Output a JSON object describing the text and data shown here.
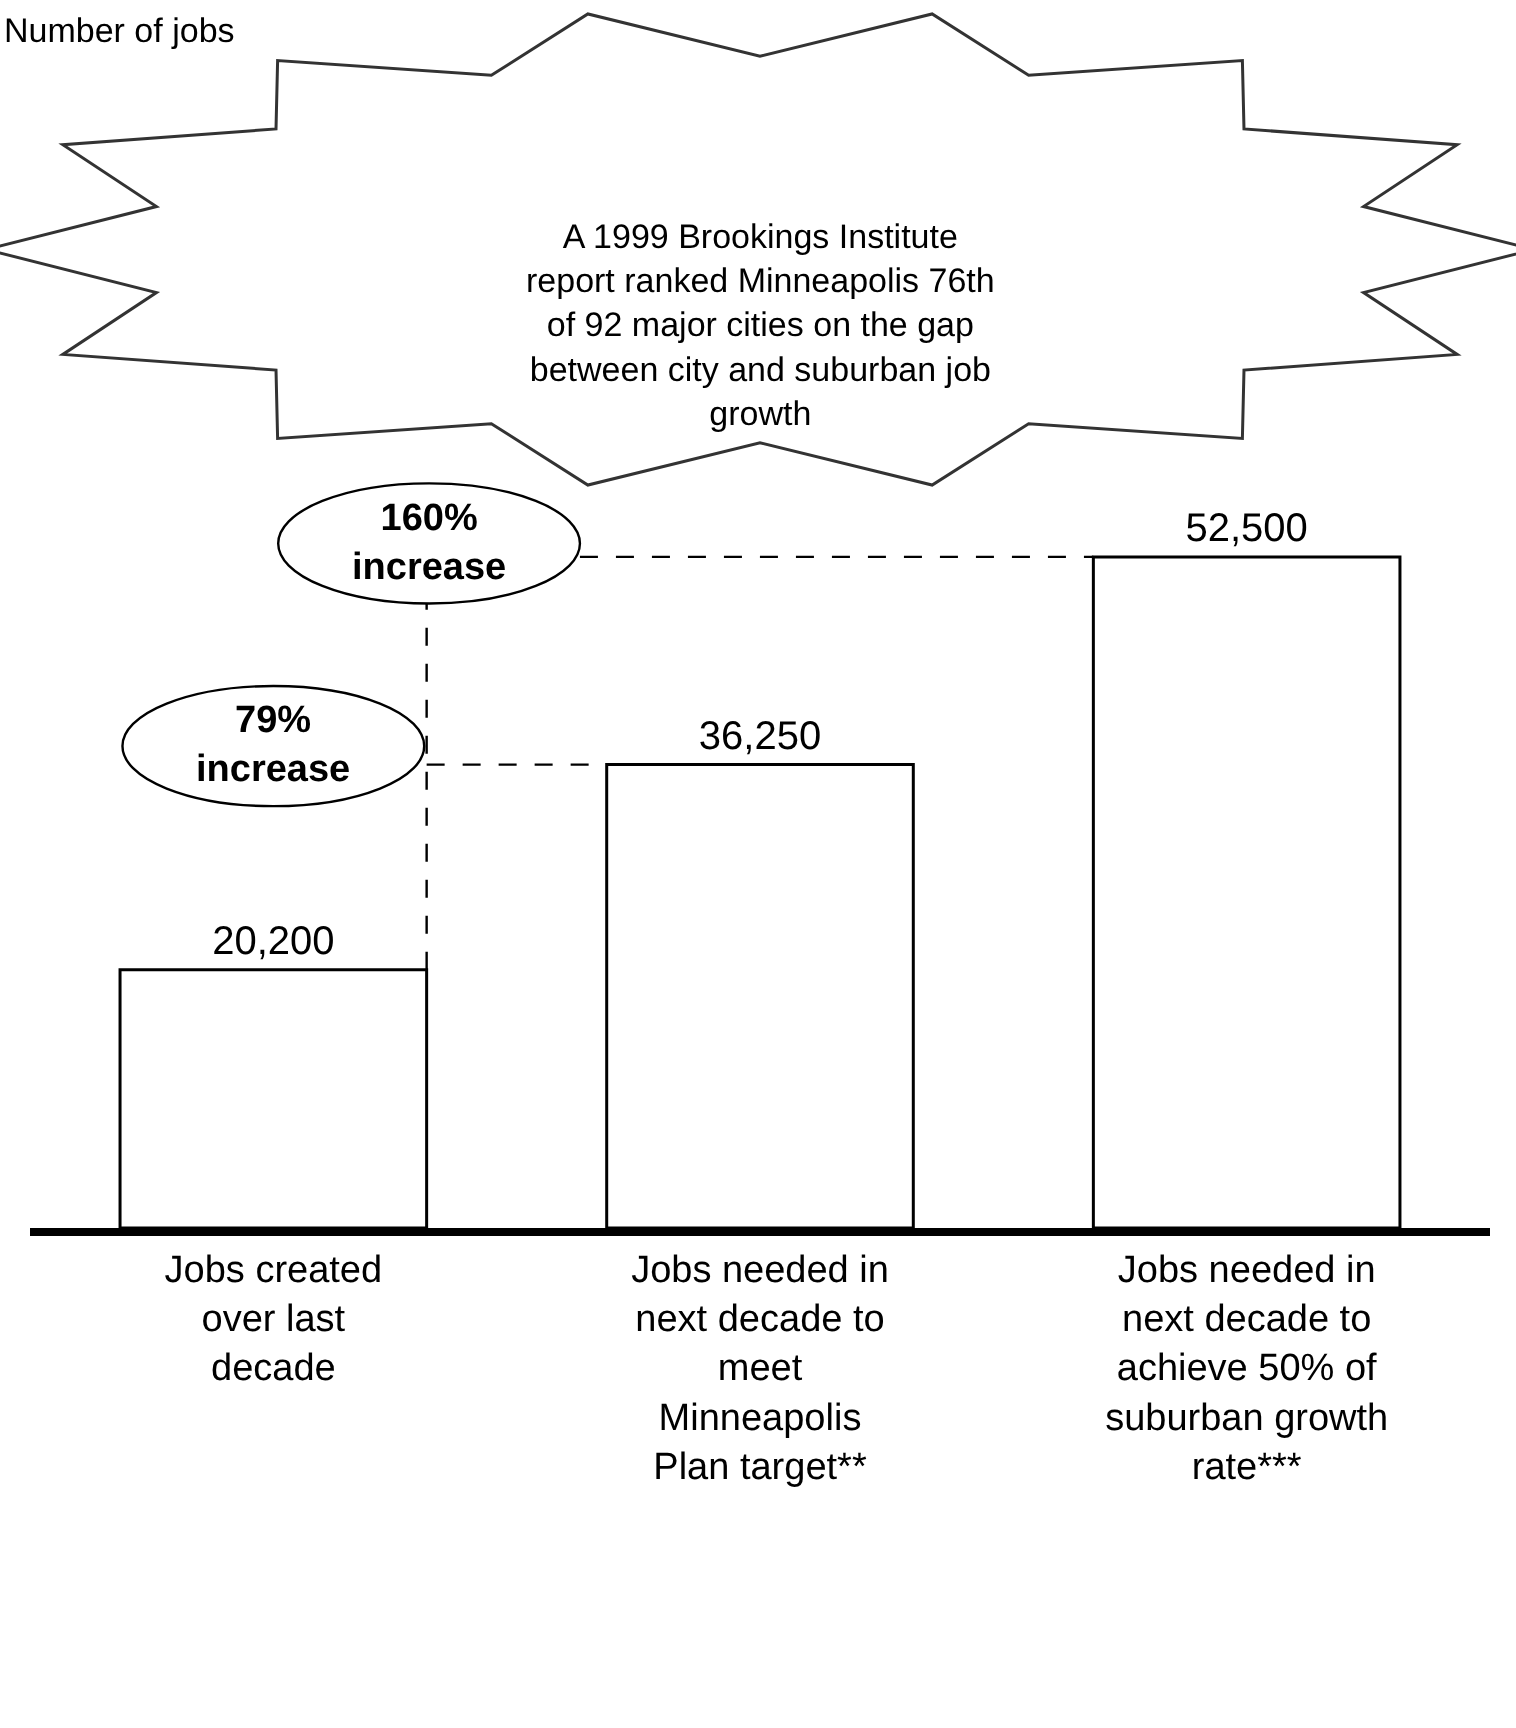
{
  "chart_data": {
    "type": "bar",
    "categories": [
      "Jobs created over last decade",
      "Jobs needed in next decade to meet Minneapolis Plan target**",
      "Jobs needed in next decade to achieve 50% of suburban growth rate***"
    ],
    "values": [
      20200,
      36250,
      52500
    ],
    "value_labels": [
      "20,200",
      "36,250",
      "52,500"
    ],
    "color": "#ffffff",
    "legend": false,
    "annotations": [
      "Number of jobs",
      "A 1999 Brookings Institute report ranked Minneapolis 76th of 92 major cities on the gap between city and suburban job growth",
      "79% increase",
      "160% increase"
    ]
  }
}
